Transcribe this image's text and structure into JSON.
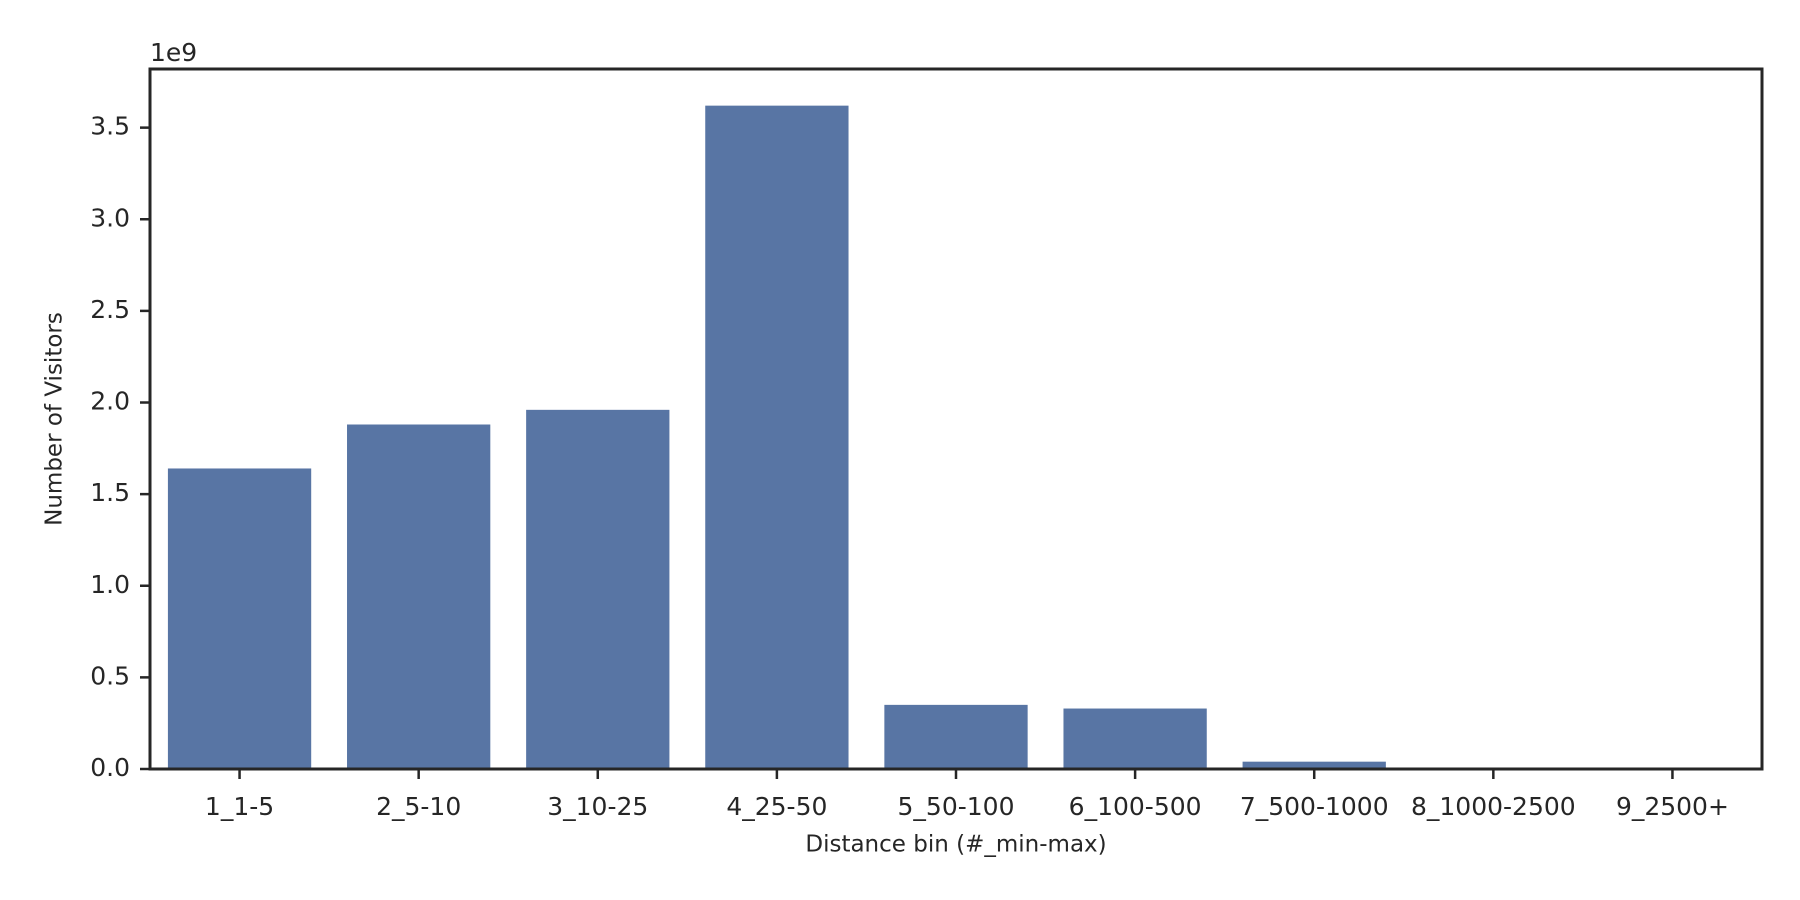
{
  "chart_data": {
    "type": "bar",
    "x_label": "Distance bin (#_min-max)",
    "y_label": "Number of Visitors",
    "y_offset_label": "1e9",
    "categories": [
      "1_1-5",
      "2_5-10",
      "3_10-25",
      "4_25-50",
      "5_50-100",
      "6_100-500",
      "7_500-1000",
      "8_1000-2500",
      "9_2500+"
    ],
    "values": [
      1.64,
      1.88,
      1.96,
      3.62,
      0.35,
      0.33,
      0.04,
      0,
      0
    ],
    "color": "#5875a4",
    "ylim": [
      0,
      3.82
    ],
    "yticks": [
      {
        "value": 0,
        "label": "0.0"
      },
      {
        "value": 0.5,
        "label": "0.5"
      },
      {
        "value": 1,
        "label": "1.0"
      },
      {
        "value": 1.5,
        "label": "1.5"
      },
      {
        "value": 2,
        "label": "2.0"
      },
      {
        "value": 2.5,
        "label": "2.5"
      },
      {
        "value": 3,
        "label": "3.0"
      },
      {
        "value": 3.5,
        "label": "3.5"
      }
    ],
    "grid": false
  }
}
